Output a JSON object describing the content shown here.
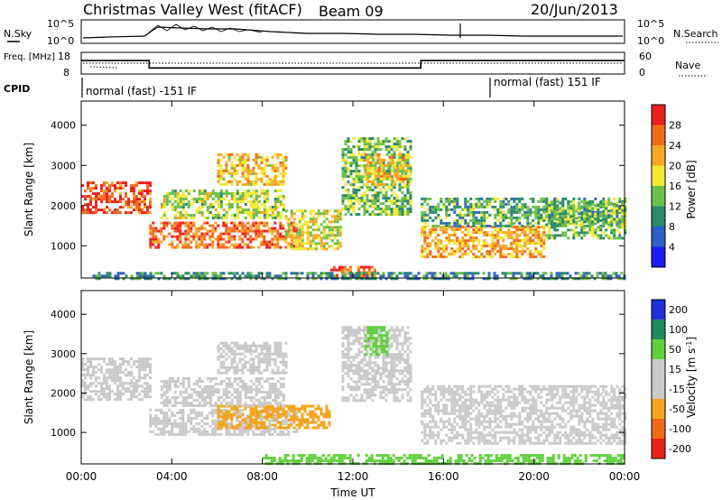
{
  "header": {
    "title": "Christmas Valley West (fitACF)",
    "beam": "Beam 09",
    "date": "20/Jun/2013"
  },
  "chart_data": [
    {
      "type": "line",
      "name": "noise-panel",
      "left_label": "N.Sky",
      "right_label": "N.Search",
      "left_ticks": [
        "10^5",
        "10^0"
      ],
      "right_ticks": [
        "10^5",
        "10^0"
      ],
      "yscale": "log",
      "ylim": [
        1,
        100000
      ]
    },
    {
      "type": "line",
      "name": "frequency-panel",
      "left_label": "Freq. [MHz]",
      "right_label": "Nave",
      "left_ticks": [
        "18",
        "8"
      ],
      "right_ticks": [
        "60",
        "0"
      ],
      "freq_ylim": [
        8,
        18
      ],
      "nave_ylim": [
        0,
        60
      ],
      "freq_steps": [
        {
          "t": 0.0,
          "v": 14.2
        },
        {
          "t": 3.0,
          "v": 14.2
        },
        {
          "t": 3.0,
          "v": 10.8
        },
        {
          "t": 15.0,
          "v": 10.8
        },
        {
          "t": 15.0,
          "v": 14.2
        },
        {
          "t": 24.0,
          "v": 14.2
        }
      ]
    },
    {
      "type": "table",
      "name": "cpid-panel",
      "label": "CPID",
      "segments": [
        {
          "start": 0,
          "end": 18,
          "text": "normal (fast) -151 IF"
        },
        {
          "start": 18,
          "end": 24,
          "text": "normal (fast) 151 IF"
        }
      ]
    },
    {
      "type": "heatmap",
      "name": "power-panel",
      "ylabel": "Slant Range [km]",
      "y_ticks": [
        1000,
        2000,
        3000,
        4000
      ],
      "ylim": [
        200,
        4600
      ],
      "colorbar_label": "Power [dB]",
      "colorbar_ticks": [
        4,
        8,
        12,
        16,
        20,
        24,
        28
      ],
      "colorbar_range": [
        0,
        32
      ],
      "colors": [
        "#1c1cf5",
        "#2f5fc7",
        "#2a8a6a",
        "#6cbf4a",
        "#f4e832",
        "#f6a823",
        "#f26a1b",
        "#ee1f1f"
      ],
      "scatter_bands": [
        {
          "t0": 0.0,
          "t1": 3.0,
          "r0": 1800,
          "r1": 2600,
          "level": 28
        },
        {
          "t0": 3.0,
          "t1": 9.5,
          "r0": 950,
          "r1": 1600,
          "level": 26
        },
        {
          "t0": 3.5,
          "t1": 9.0,
          "r0": 1700,
          "r1": 2400,
          "level": 16
        },
        {
          "t0": 6.0,
          "t1": 9.0,
          "r0": 2500,
          "r1": 3300,
          "level": 20
        },
        {
          "t0": 9.0,
          "t1": 11.5,
          "r0": 900,
          "r1": 1900,
          "level": 18
        },
        {
          "t0": 11.5,
          "t1": 14.5,
          "r0": 1800,
          "r1": 3700,
          "level": 14
        },
        {
          "t0": 12.5,
          "t1": 14.5,
          "r0": 2500,
          "r1": 3300,
          "level": 20
        },
        {
          "t0": 15.0,
          "t1": 20.5,
          "r0": 700,
          "r1": 1500,
          "level": 22
        },
        {
          "t0": 15.0,
          "t1": 24.0,
          "r0": 1500,
          "r1": 2200,
          "level": 12
        },
        {
          "t0": 20.5,
          "t1": 24.0,
          "r0": 1200,
          "r1": 2100,
          "level": 14
        },
        {
          "t0": 11.0,
          "t1": 13.0,
          "r0": 200,
          "r1": 500,
          "level": 27
        },
        {
          "t0": 0.5,
          "t1": 24.0,
          "r0": 200,
          "r1": 350,
          "level": 10
        }
      ]
    },
    {
      "type": "heatmap",
      "name": "velocity-panel",
      "ylabel": "Slant Range [km]",
      "y_ticks": [
        1000,
        2000,
        3000,
        4000
      ],
      "ylim": [
        200,
        4600
      ],
      "xlabel": "Time UT",
      "x_ticks": [
        "00:00",
        "04:00",
        "08:00",
        "12:00",
        "16:00",
        "20:00",
        "00:00"
      ],
      "xlim": [
        0,
        24
      ],
      "colorbar_label": "Velocity [m s^-1]",
      "colorbar_ticks": [
        200,
        100,
        50,
        15,
        -15,
        -50,
        -100,
        -200
      ],
      "colors": [
        "#1f2fd8",
        "#1f8a5f",
        "#5fcf3a",
        "#c9c9c9",
        "#c9c9c9",
        "#f3a51f",
        "#f06a1a",
        "#ee1f1f"
      ],
      "scatter_bands": [
        {
          "t0": 0.0,
          "t1": 3.0,
          "r0": 1800,
          "r1": 2900,
          "level": 15
        },
        {
          "t0": 3.0,
          "t1": 9.5,
          "r0": 950,
          "r1": 1600,
          "level": 15
        },
        {
          "t0": 6.0,
          "t1": 11.0,
          "r0": 1100,
          "r1": 1700,
          "level": -50
        },
        {
          "t0": 3.5,
          "t1": 9.0,
          "r0": 1700,
          "r1": 2400,
          "level": 15
        },
        {
          "t0": 6.0,
          "t1": 9.0,
          "r0": 2500,
          "r1": 3300,
          "level": 15
        },
        {
          "t0": 11.5,
          "t1": 14.5,
          "r0": 1800,
          "r1": 3700,
          "level": 15
        },
        {
          "t0": 12.5,
          "t1": 13.5,
          "r0": 3000,
          "r1": 3700,
          "level": 50
        },
        {
          "t0": 15.0,
          "t1": 24.0,
          "r0": 700,
          "r1": 2200,
          "level": 15
        },
        {
          "t0": 8.0,
          "t1": 24.0,
          "r0": 200,
          "r1": 450,
          "level": 50
        }
      ]
    }
  ]
}
